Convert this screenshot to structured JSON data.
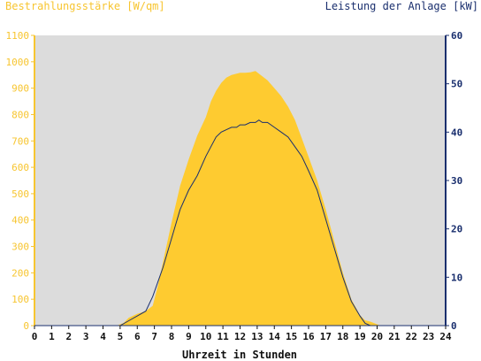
{
  "chart_data": {
    "type": "area",
    "title_left": "Bestrahlungsstärke [W/qm]",
    "title_right": "Leistung der Anlage [kW]",
    "xlabel": "Uhrzeit in Stunden",
    "x_ticks": [
      "0",
      "1",
      "2",
      "3",
      "4",
      "5",
      "6",
      "7",
      "8",
      "9",
      "10",
      "11",
      "12",
      "13",
      "14",
      "15",
      "16",
      "17",
      "18",
      "19",
      "20",
      "21",
      "22",
      "23",
      "24"
    ],
    "xlim": [
      0,
      24
    ],
    "y_left_ticks": [
      "0",
      "100",
      "200",
      "300",
      "400",
      "500",
      "600",
      "700",
      "800",
      "900",
      "1000",
      "1100"
    ],
    "y_left_lim": [
      0,
      1100
    ],
    "y_right_ticks": [
      "0",
      "10",
      "20",
      "30",
      "40",
      "50",
      "60"
    ],
    "y_right_lim": [
      0,
      60
    ],
    "grid": false,
    "colors": {
      "plot_bg": "#dcdcdc",
      "irradiance": "#fecb30",
      "power": "#1a2f6e",
      "left_axis": "#f7c530",
      "right_axis": "#1a2f6e"
    },
    "series": [
      {
        "axis": "left",
        "style": "area",
        "x": [
          0,
          4.8,
          5.2,
          5.5,
          6,
          6.5,
          6.9,
          7.2,
          7.5,
          8,
          8.5,
          9,
          9.5,
          10,
          10.3,
          10.6,
          10.9,
          11.2,
          11.5,
          11.8,
          12,
          12.3,
          12.6,
          12.9,
          13.1,
          13.3,
          13.6,
          14,
          14.4,
          14.8,
          15.2,
          15.6,
          16,
          16.5,
          17,
          17.5,
          18,
          18.5,
          19,
          19.3,
          19.6,
          20,
          20.2,
          24
        ],
        "y": [
          0,
          0,
          10,
          30,
          45,
          55,
          75,
          150,
          240,
          390,
          530,
          630,
          720,
          790,
          850,
          890,
          920,
          940,
          950,
          955,
          958,
          958,
          960,
          965,
          955,
          945,
          930,
          900,
          870,
          830,
          780,
          710,
          640,
          550,
          440,
          320,
          200,
          100,
          40,
          20,
          15,
          5,
          0,
          0
        ]
      },
      {
        "axis": "right",
        "style": "line",
        "x": [
          0,
          5,
          5.5,
          6,
          6.5,
          6.9,
          7.2,
          7.5,
          8,
          8.5,
          9,
          9.5,
          10,
          10.3,
          10.6,
          10.9,
          11.2,
          11.5,
          11.8,
          12,
          12.3,
          12.6,
          12.9,
          13.1,
          13.3,
          13.6,
          14,
          14.4,
          14.8,
          15.2,
          15.6,
          16,
          16.5,
          17,
          17.5,
          18,
          18.5,
          19,
          19.3,
          19.6,
          20,
          24
        ],
        "y": [
          0,
          0,
          1,
          2,
          3,
          6,
          9,
          12,
          18,
          24,
          28,
          31,
          35,
          37,
          39,
          40,
          40.5,
          41,
          41,
          41.5,
          41.5,
          42,
          42,
          42.5,
          42,
          42,
          41,
          40,
          39,
          37,
          35,
          32,
          28,
          22,
          16,
          10,
          5,
          2,
          0.5,
          0,
          0,
          0
        ]
      }
    ]
  }
}
